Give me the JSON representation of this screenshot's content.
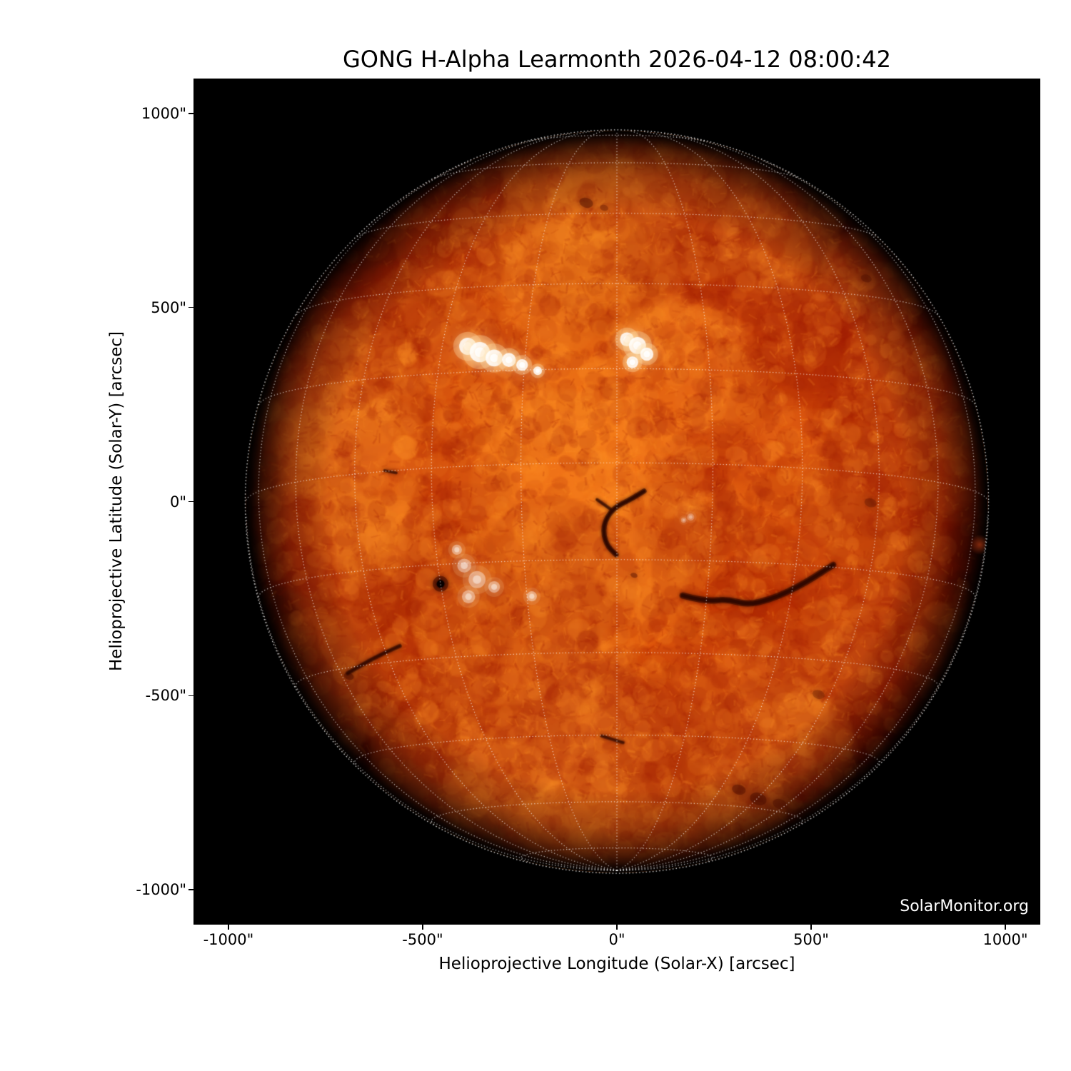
{
  "title": "GONG H-Alpha Learmonth 2026-04-12 08:00:42",
  "watermark": "SolarMonitor.org",
  "axes": {
    "xlabel": "Helioprojective Longitude (Solar-X) [arcsec]",
    "ylabel": "Helioprojective Latitude (Solar-Y) [arcsec]",
    "xticks": [
      {
        "value": -1000,
        "label": "-1000\""
      },
      {
        "value": -500,
        "label": "-500\""
      },
      {
        "value": 0,
        "label": "0\""
      },
      {
        "value": 500,
        "label": "500\""
      },
      {
        "value": 1000,
        "label": "1000\""
      }
    ],
    "yticks": [
      {
        "value": 1000,
        "label": "1000\""
      },
      {
        "value": 500,
        "label": "500\""
      },
      {
        "value": 0,
        "label": "0\""
      },
      {
        "value": -500,
        "label": "-500\""
      },
      {
        "value": -1000,
        "label": "-1000\""
      }
    ]
  },
  "chart_data": {
    "type": "heatmap",
    "title": "GONG H-Alpha Learmonth 2026-04-12 08:00:42",
    "xlabel": "Helioprojective Longitude (Solar-X) [arcsec]",
    "ylabel": "Helioprojective Latitude (Solar-Y) [arcsec]",
    "xlim": [
      -1090,
      1090
    ],
    "ylim": [
      -1090,
      1090
    ],
    "legend": "none",
    "grid": "heliographic dotted overlay on solar disk",
    "sun": {
      "center_arcsec": [
        0,
        0
      ],
      "radius_arcsec": 955,
      "b0_deg": -6,
      "grid_spacing_deg": 15,
      "texture_seed": 7
    },
    "palette": {
      "background": "#000000",
      "limb_gradient": [
        [
          0,
          "#ef600e"
        ],
        [
          0.3,
          "#e85608"
        ],
        [
          0.5,
          "#de4a06"
        ],
        [
          0.65,
          "#cb3a04"
        ],
        [
          0.78,
          "#a62702"
        ],
        [
          0.86,
          "#7a1502"
        ],
        [
          0.92,
          "#470801"
        ],
        [
          0.965,
          "#190100"
        ],
        [
          1,
          "#000000"
        ]
      ],
      "granule_light": "255,148,40",
      "granule_dark": "158,28,3",
      "plage_core": "255,255,255",
      "plage_halo": "255,225,170",
      "filament": "40,5,0",
      "spot_dark": "70,10,0",
      "grid_line": "rgba(255,255,255,0.72)",
      "limb_line": "rgba(255,255,255,0.85)",
      "limb_spot_color": "rgba(225,75,25,0.55)"
    },
    "features": {
      "plages": [
        {
          "name": "plage-region-north-left",
          "intensity": 1.0,
          "blobs": [
            [
              -384,
              400,
              22
            ],
            [
              -353,
              385,
              26
            ],
            [
              -316,
              370,
              22
            ],
            [
              -278,
              365,
              18
            ],
            [
              -244,
              352,
              15
            ],
            [
              -204,
              337,
              11
            ]
          ]
        },
        {
          "name": "plage-region-north-center",
          "intensity": 1.0,
          "blobs": [
            [
              26,
              418,
              18
            ],
            [
              53,
              402,
              22
            ],
            [
              77,
              380,
              17
            ],
            [
              40,
              359,
              15
            ]
          ]
        },
        {
          "name": "plage-region-southwest",
          "intensity": 0.45,
          "blobs": [
            [
              -393,
              -165,
              18
            ],
            [
              -360,
              -201,
              22
            ],
            [
              -382,
              -245,
              17
            ],
            [
              -316,
              -220,
              15
            ],
            [
              -219,
              -244,
              13
            ],
            [
              -412,
              -124,
              13
            ]
          ]
        },
        {
          "name": "plage-specks-center",
          "intensity": 0.3,
          "blobs": [
            [
              190,
              -40,
              9
            ],
            [
              172,
              -48,
              7
            ]
          ]
        }
      ],
      "filaments": [
        {
          "path": [
            [
              70,
              27
            ],
            [
              37,
              6
            ],
            [
              -11,
              -17
            ],
            [
              -37,
              -63
            ],
            [
              -28,
              -111
            ],
            [
              -2,
              -137
            ]
          ],
          "width": 13,
          "alpha": 0.75
        },
        {
          "path": [
            [
              -51,
              5
            ],
            [
              -17,
              -19
            ]
          ],
          "width": 9,
          "alpha": 0.55
        },
        {
          "path": [
            [
              169,
              -242
            ],
            [
              228,
              -258
            ],
            [
              283,
              -251
            ],
            [
              335,
              -266
            ],
            [
              392,
              -253
            ],
            [
              439,
              -233
            ],
            [
              485,
              -209
            ],
            [
              529,
              -181
            ],
            [
              557,
              -163
            ]
          ],
          "width": 16,
          "alpha": 0.7
        },
        {
          "path": [
            [
              -693,
              -442
            ],
            [
              -647,
              -415
            ],
            [
              -601,
              -391
            ],
            [
              -559,
              -372
            ]
          ],
          "width": 11,
          "alpha": 0.6
        },
        {
          "path": [
            [
              -39,
              -604
            ],
            [
              16,
              -621
            ]
          ],
          "width": 9,
          "alpha": 0.5
        },
        {
          "path": [
            [
              -598,
              80
            ],
            [
              -568,
              74
            ]
          ],
          "width": 8,
          "alpha": 0.5
        }
      ],
      "sunspots": [
        {
          "x": -454,
          "y": -212,
          "core_r": 10,
          "penumbra_r": 20
        }
      ],
      "dark_patches": [
        [
          -79,
          770,
          18,
          0.4
        ],
        [
          -33,
          757,
          11,
          0.3
        ],
        [
          642,
          575,
          14,
          0.35
        ],
        [
          653,
          -3,
          16,
          0.3
        ],
        [
          519,
          -497,
          16,
          0.3
        ],
        [
          314,
          -742,
          18,
          0.4
        ],
        [
          364,
          -766,
          22,
          0.45
        ],
        [
          419,
          -779,
          18,
          0.4
        ],
        [
          474,
          -762,
          14,
          0.35
        ],
        [
          44,
          -190,
          9,
          0.4
        ],
        [
          -690,
          -450,
          13,
          0.45
        ]
      ],
      "bright_patches": [
        [
          -449,
          -179,
          560,
          0.2
        ],
        [
          11,
          -419,
          470,
          0.13
        ],
        [
          -300,
          372,
          380,
          0.1
        ],
        [
          526,
          5,
          430,
          0.08
        ]
      ],
      "limb_spot": {
        "x": 934,
        "y": -111,
        "r": 26
      }
    }
  }
}
